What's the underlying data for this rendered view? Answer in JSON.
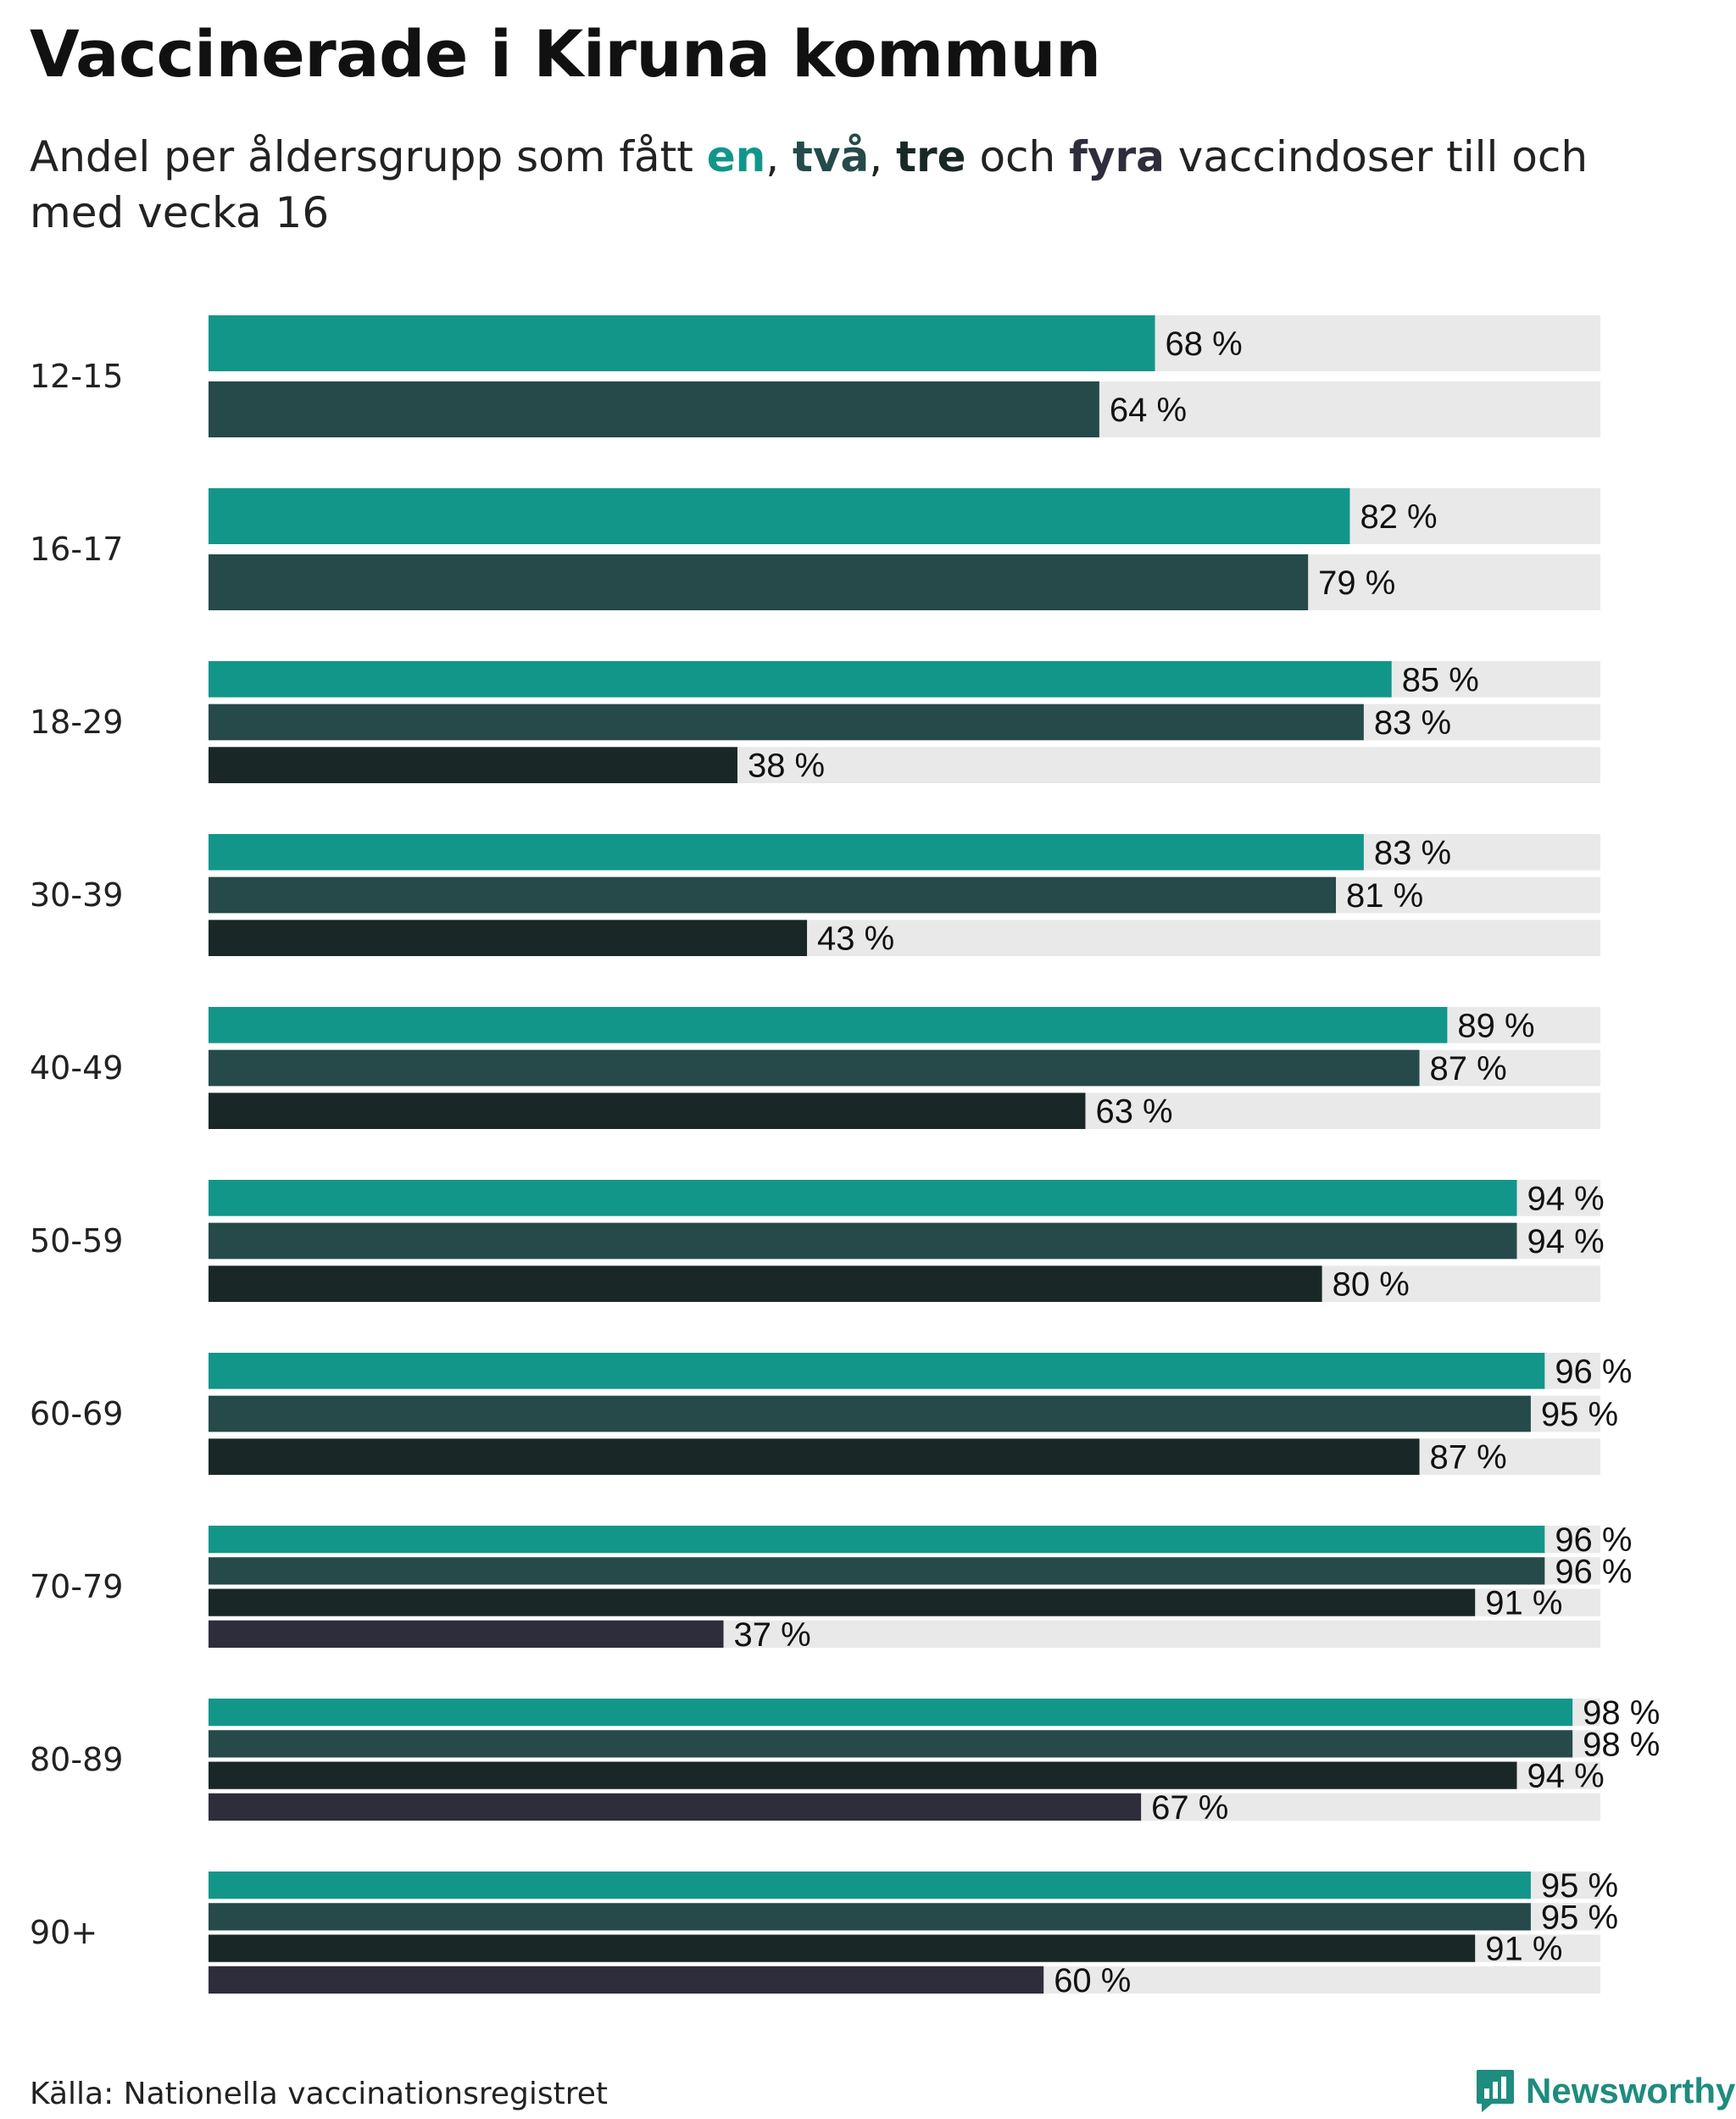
{
  "header": {
    "title": "Vaccinerade i Kiruna kommun",
    "subtitle_part1": "Andel per åldersgrupp som fått ",
    "kw_en": "en",
    "sep1": ", ",
    "kw_tva": "två",
    "sep2": ", ",
    "kw_tre": "tre",
    "sep3": " och ",
    "kw_fyra": "fyra",
    "subtitle_part2": " vaccindoser till och med vecka 16"
  },
  "footer": {
    "source": "Källa: Nationella vaccinationsregistret",
    "brand": "Newsworthy"
  },
  "colors": {
    "en": "#12968a",
    "tva": "#254a49",
    "tre": "#192826",
    "fyra": "#2e2d3b",
    "track": "#e9e9e9",
    "brand": "#1e8c7e"
  },
  "chart_data": {
    "type": "bar",
    "orientation": "horizontal",
    "title": "Vaccinerade i Kiruna kommun",
    "subtitle": "Andel per åldersgrupp som fått en, två, tre och fyra vaccindoser till och med vecka 16",
    "unit": "%",
    "xlim": [
      0,
      100
    ],
    "categories": [
      "12-15",
      "16-17",
      "18-29",
      "30-39",
      "40-49",
      "50-59",
      "60-69",
      "70-79",
      "80-89",
      "90+"
    ],
    "series": [
      {
        "name": "en",
        "values": [
          68,
          82,
          85,
          83,
          89,
          94,
          96,
          96,
          98,
          95
        ]
      },
      {
        "name": "två",
        "values": [
          64,
          79,
          83,
          81,
          87,
          94,
          95,
          96,
          98,
          95
        ]
      },
      {
        "name": "tre",
        "values": [
          null,
          null,
          38,
          43,
          63,
          80,
          87,
          91,
          94,
          91
        ]
      },
      {
        "name": "fyra",
        "values": [
          null,
          null,
          null,
          null,
          null,
          null,
          null,
          37,
          67,
          60
        ]
      }
    ],
    "value_labels": [
      [
        "68 %",
        "64 %"
      ],
      [
        "82 %",
        "79 %"
      ],
      [
        "85 %",
        "83 %",
        "38 %"
      ],
      [
        "83 %",
        "81 %",
        "43 %"
      ],
      [
        "89 %",
        "87 %",
        "63 %"
      ],
      [
        "94 %",
        "94 %",
        "80 %"
      ],
      [
        "96 %",
        "95 %",
        "87 %"
      ],
      [
        "96 %",
        "96 %",
        "91 %",
        "37 %"
      ],
      [
        "98 %",
        "98 %",
        "94 %",
        "67 %"
      ],
      [
        "95 %",
        "95 %",
        "91 %",
        "60 %"
      ]
    ]
  }
}
